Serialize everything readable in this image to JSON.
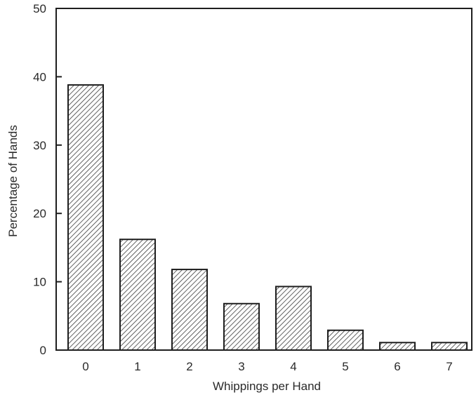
{
  "chart_data": {
    "type": "bar",
    "title": "",
    "xlabel": "Whippings per Hand",
    "ylabel": "Percentage of Hands",
    "categories": [
      "0",
      "1",
      "2",
      "3",
      "4",
      "5",
      "6",
      "7"
    ],
    "values": [
      38.8,
      16.2,
      11.8,
      6.8,
      9.3,
      2.9,
      1.1,
      1.1
    ],
    "ylim": [
      0,
      50
    ],
    "yticks": [
      0,
      10,
      20,
      30,
      40,
      50
    ],
    "grid": false,
    "legend": "none",
    "bar_fill": "hatched",
    "colors": {
      "bar_stroke": "#1e1e1e",
      "hatch": "#3a3a3a",
      "axis": "#1e1e1e"
    }
  }
}
